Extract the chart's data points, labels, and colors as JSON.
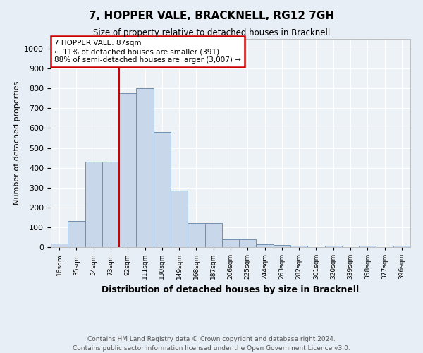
{
  "title": "7, HOPPER VALE, BRACKNELL, RG12 7GH",
  "subtitle": "Size of property relative to detached houses in Bracknell",
  "xlabel": "Distribution of detached houses by size in Bracknell",
  "ylabel": "Number of detached properties",
  "footer_line1": "Contains HM Land Registry data © Crown copyright and database right 2024.",
  "footer_line2": "Contains public sector information licensed under the Open Government Licence v3.0.",
  "bin_labels": [
    "16sqm",
    "35sqm",
    "54sqm",
    "73sqm",
    "92sqm",
    "111sqm",
    "130sqm",
    "149sqm",
    "168sqm",
    "187sqm",
    "206sqm",
    "225sqm",
    "244sqm",
    "263sqm",
    "282sqm",
    "301sqm",
    "320sqm",
    "339sqm",
    "358sqm",
    "377sqm",
    "396sqm"
  ],
  "bar_heights": [
    18,
    130,
    430,
    430,
    775,
    800,
    580,
    285,
    120,
    120,
    40,
    40,
    15,
    10,
    8,
    0,
    8,
    0,
    8,
    0,
    8
  ],
  "bar_color": "#c8d8ea",
  "bar_edge_color": "#7090b0",
  "annotation_line1": "7 HOPPER VALE: 87sqm",
  "annotation_line2": "← 11% of detached houses are smaller (391)",
  "annotation_line3": "88% of semi-detached houses are larger (3,007) →",
  "vline_color": "#cc0000",
  "annotation_box_color": "#ffffff",
  "annotation_box_edge": "#cc0000",
  "vline_bar_index": 4,
  "ylim": [
    0,
    1050
  ],
  "yticks": [
    0,
    100,
    200,
    300,
    400,
    500,
    600,
    700,
    800,
    900,
    1000
  ],
  "background_color": "#e8eef5",
  "plot_bg_color": "#edf2f7"
}
